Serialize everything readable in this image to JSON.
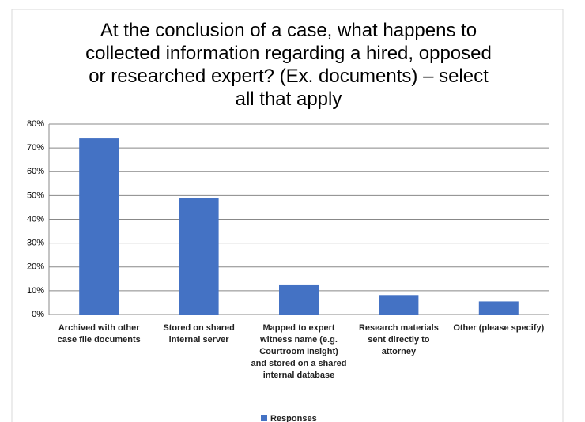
{
  "chart_data": {
    "type": "bar",
    "title": "At the conclusion of a case, what happens to collected information regarding a hired, opposed or researched expert? (Ex. documents) – select all that apply",
    "categories": [
      "Archived with other case file documents",
      "Stored on shared internal server",
      "Mapped to expert witness name (e.g. Courtroom Insight) and stored on a shared internal database",
      "Research materials sent directly to attorney",
      "Other (please specify)"
    ],
    "series": [
      {
        "name": "Responses",
        "color": "#4472c4",
        "values": [
          74,
          49,
          12.3,
          8.2,
          5.5
        ]
      }
    ],
    "ylim": [
      0,
      80
    ],
    "yticks": [
      {
        "value": 0,
        "label": "0%"
      },
      {
        "value": 10,
        "label": "10%"
      },
      {
        "value": 20,
        "label": "20%"
      },
      {
        "value": 30,
        "label": "30%"
      },
      {
        "value": 40,
        "label": "40%"
      },
      {
        "value": 50,
        "label": "50%"
      },
      {
        "value": 60,
        "label": "60%"
      },
      {
        "value": 70,
        "label": "70%"
      },
      {
        "value": 80,
        "label": "80%"
      }
    ],
    "grid": true,
    "legend": "bottom"
  }
}
